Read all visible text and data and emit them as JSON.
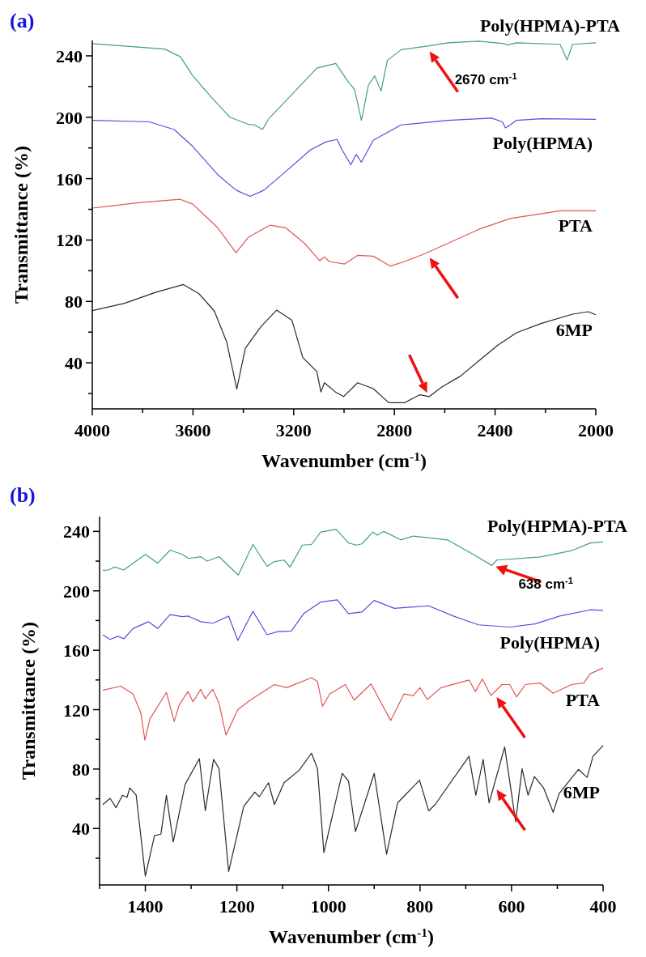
{
  "chart_data": [
    {
      "type": "line",
      "title": "(a)",
      "xlabel": "Wavenumber (cm$^{-1}$)",
      "ylabel": "Transmittance (%)",
      "xlim": [
        4000,
        2000
      ],
      "xticks": [
        4000,
        {
          "value": 3800,
          "label": null
        },
        3600,
        {
          "value": 3400,
          "label": null
        },
        3200,
        {
          "value": 3000,
          "label": null
        },
        2800,
        {
          "value": 2600,
          "label": null
        },
        2400,
        {
          "value": 2200,
          "label": null
        },
        2000
      ],
      "ylim": [
        10,
        250
      ],
      "yticks": [
        {
          "value": 20,
          "label": null
        },
        40,
        {
          "value": 60,
          "label": null
        },
        80,
        {
          "value": 100,
          "label": null
        },
        120,
        {
          "value": 140,
          "label": null
        },
        160,
        {
          "value": 180,
          "label": null
        },
        200,
        {
          "value": 220,
          "label": null
        },
        240
      ],
      "annotations": [
        {
          "text": "2670 cm$^{-1}$",
          "x": 2670,
          "y": 246
        }
      ],
      "series": [
        {
          "name": "Poly(HPMA)-PTA",
          "color": "#3f9e8f",
          "x": [
            4000,
            3712,
            3650,
            3601,
            3527,
            3453,
            3379,
            3355,
            3324,
            3299,
            3195,
            3108,
            3033,
            2983,
            2958,
            2931,
            2903,
            2878,
            2853,
            2828,
            2773,
            2661,
            2587,
            2464,
            2364,
            2352,
            2315,
            2142,
            2114,
            2092,
            2000
          ],
          "values": [
            248,
            244.4,
            239.4,
            227,
            213,
            200,
            195.3,
            195,
            192,
            199,
            217,
            232,
            235,
            223,
            218,
            198,
            221,
            227,
            217,
            237,
            244,
            246.5,
            248.5,
            249.5,
            248,
            247,
            248.5,
            247.5,
            237.4,
            247.5,
            248.5
          ]
        },
        {
          "name": "Poly(HPMA)",
          "color": "#4f4fe0",
          "x": [
            4000,
            3773,
            3675,
            3601,
            3502,
            3429,
            3373,
            3318,
            3232,
            3133,
            3071,
            3028,
            3008,
            2973,
            2952,
            2931,
            2884,
            2773,
            2587,
            2414,
            2371,
            2359,
            2340,
            2315,
            2216,
            2000
          ],
          "values": [
            198,
            197,
            192,
            181,
            162.6,
            152.5,
            148.5,
            152.5,
            164.6,
            178.8,
            184,
            185.5,
            178.8,
            169,
            175.8,
            170.7,
            185,
            195,
            198,
            199.4,
            197,
            193,
            195,
            198,
            199,
            198.6
          ]
        },
        {
          "name": "PTA",
          "color": "#e05555",
          "x": [
            4000,
            3810,
            3650,
            3601,
            3502,
            3429,
            3379,
            3293,
            3232,
            3158,
            3096,
            3078,
            3059,
            2998,
            2946,
            2884,
            2816,
            2760,
            2680,
            2612,
            2464,
            2340,
            2142,
            2000
          ],
          "values": [
            140.8,
            144.4,
            146.5,
            143.4,
            128,
            111.7,
            122,
            129.7,
            128,
            118,
            106.5,
            109,
            106,
            104.4,
            110,
            109.5,
            103,
            106,
            111,
            116,
            127,
            134,
            139,
            139
          ]
        },
        {
          "name": "6MP",
          "color": "#2a2a2a",
          "x": [
            4000,
            3872,
            3749,
            3638,
            3576,
            3515,
            3466,
            3426,
            3392,
            3330,
            3268,
            3207,
            3164,
            3108,
            3092,
            3078,
            3034,
            3002,
            2946,
            2884,
            2822,
            2760,
            2699,
            2661,
            2612,
            2538,
            2464,
            2389,
            2315,
            2216,
            2092,
            2030,
            2000
          ],
          "values": [
            74,
            78.8,
            85.9,
            91,
            85,
            73.7,
            53.5,
            23,
            49.5,
            63.6,
            74.3,
            67.7,
            43.4,
            34.3,
            21,
            27,
            21,
            18,
            27,
            23.2,
            14,
            14,
            19.2,
            18,
            24.2,
            31.3,
            41.4,
            51.5,
            59.6,
            65.7,
            71.7,
            73.3,
            71.3
          ]
        }
      ]
    },
    {
      "type": "line",
      "title": "(b)",
      "xlabel": "Wavenumber (cm$^{-1}$)",
      "ylabel": "Transmittance (%)",
      "xlim": [
        1500,
        400
      ],
      "xticks": [
        {
          "value": 1500,
          "label": null
        },
        1400,
        {
          "value": 1300,
          "label": null
        },
        1200,
        {
          "value": 1100,
          "label": null
        },
        1000,
        {
          "value": 900,
          "label": null
        },
        800,
        {
          "value": 700,
          "label": null
        },
        600,
        {
          "value": 500,
          "label": null
        },
        400
      ],
      "ylim": [
        2,
        250
      ],
      "yticks": [
        {
          "value": 20,
          "label": null
        },
        40,
        {
          "value": 60,
          "label": null
        },
        80,
        {
          "value": 100,
          "label": null
        },
        120,
        {
          "value": 140,
          "label": null
        },
        160,
        {
          "value": 180,
          "label": null
        },
        200,
        {
          "value": 220,
          "label": null
        },
        240
      ],
      "annotations": [
        {
          "text": "638 cm$^{-1}$",
          "x": 638,
          "y": 218
        }
      ],
      "series": [
        {
          "name": "Poly(HPMA)-PTA",
          "color": "#3f9e8f",
          "x": [
            1493,
            1481,
            1467,
            1447,
            1400,
            1373,
            1346,
            1319,
            1306,
            1279,
            1265,
            1239,
            1212,
            1197,
            1165,
            1134,
            1118,
            1097,
            1084,
            1057,
            1037,
            1017,
            983,
            956,
            939,
            927,
            903,
            893,
            879,
            842,
            815,
            740,
            686,
            643,
            632,
            537,
            469,
            428,
            400
          ],
          "values": [
            213.8,
            214,
            216,
            214,
            224.5,
            218.6,
            227.4,
            224.5,
            221.8,
            223,
            220,
            223,
            215,
            210.6,
            231.2,
            216.5,
            219.7,
            220.7,
            216,
            230.8,
            231.2,
            239.6,
            241.3,
            232.2,
            230.8,
            231.6,
            239.6,
            237.5,
            240,
            234.3,
            236.9,
            234.3,
            224.9,
            217.1,
            220.7,
            222.8,
            227,
            232.2,
            232.9
          ]
        },
        {
          "name": "Poly(HPMA)",
          "color": "#4f4fe0",
          "x": [
            1493,
            1477,
            1460,
            1447,
            1427,
            1393,
            1373,
            1346,
            1319,
            1306,
            1279,
            1252,
            1218,
            1198,
            1165,
            1134,
            1111,
            1081,
            1054,
            1017,
            981,
            956,
            927,
            900,
            856,
            781,
            727,
            672,
            604,
            549,
            495,
            428,
            400
          ],
          "values": [
            170.4,
            167.3,
            169.4,
            167.7,
            174.6,
            179.2,
            174.6,
            184,
            182.6,
            183,
            179.2,
            178.2,
            183,
            166.6,
            186.2,
            170.4,
            172.5,
            172.9,
            184.7,
            192.4,
            193.9,
            184.7,
            185.7,
            193.5,
            188.2,
            189.9,
            183,
            177.1,
            175.6,
            177.7,
            183,
            187.2,
            186.8
          ]
        },
        {
          "name": "PTA",
          "color": "#e05555",
          "x": [
            1493,
            1454,
            1427,
            1410,
            1401,
            1390,
            1354,
            1337,
            1326,
            1307,
            1296,
            1279,
            1269,
            1253,
            1239,
            1224,
            1198,
            1171,
            1118,
            1091,
            1037,
            1024,
            1013,
            997,
            963,
            944,
            907,
            864,
            835,
            815,
            800,
            784,
            754,
            693,
            679,
            664,
            645,
            621,
            604,
            589,
            570,
            537,
            509,
            469,
            442,
            428,
            400
          ],
          "values": [
            133,
            135.8,
            130.6,
            118,
            99.5,
            113.8,
            131.6,
            112,
            123.2,
            132.2,
            125.3,
            133.7,
            127.4,
            133.7,
            124.3,
            102.9,
            120,
            126.4,
            136.9,
            134.8,
            141.5,
            139,
            122.2,
            130.6,
            136.9,
            126.4,
            137.3,
            112.7,
            130.6,
            129.5,
            134.8,
            126.8,
            134.8,
            140,
            132.2,
            140.6,
            129.5,
            136.9,
            136.9,
            128.5,
            136.9,
            137.9,
            131,
            136.9,
            137.9,
            144.2,
            148
          ]
        },
        {
          "name": "6MP",
          "color": "#2a2a2a",
          "x": [
            1493,
            1477,
            1464,
            1450,
            1440,
            1434,
            1420,
            1400,
            1380,
            1366,
            1354,
            1339,
            1313,
            1282,
            1269,
            1251,
            1239,
            1218,
            1185,
            1161,
            1151,
            1131,
            1118,
            1097,
            1064,
            1037,
            1024,
            1010,
            970,
            956,
            941,
            900,
            873,
            849,
            801,
            781,
            767,
            693,
            678,
            662,
            649,
            615,
            591,
            577,
            564,
            550,
            530,
            509,
            496,
            454,
            435,
            422,
            400
          ],
          "values": [
            56.1,
            60.3,
            54,
            62.4,
            61,
            67.3,
            62.4,
            7.9,
            35.2,
            36.2,
            62.4,
            30.9,
            69.8,
            87,
            52,
            86.6,
            80.3,
            11,
            55,
            64.5,
            61.4,
            70.8,
            56.1,
            70.8,
            79.2,
            90.7,
            80.3,
            23.7,
            77.1,
            71.9,
            37.9,
            77.1,
            22.6,
            57.2,
            72.5,
            51.9,
            56.1,
            88.6,
            62.4,
            86.5,
            57.2,
            94.9,
            44.6,
            80.3,
            62.4,
            75,
            67.3,
            50.9,
            63.5,
            79.8,
            74.4,
            88.6,
            96
          ]
        }
      ]
    }
  ]
}
